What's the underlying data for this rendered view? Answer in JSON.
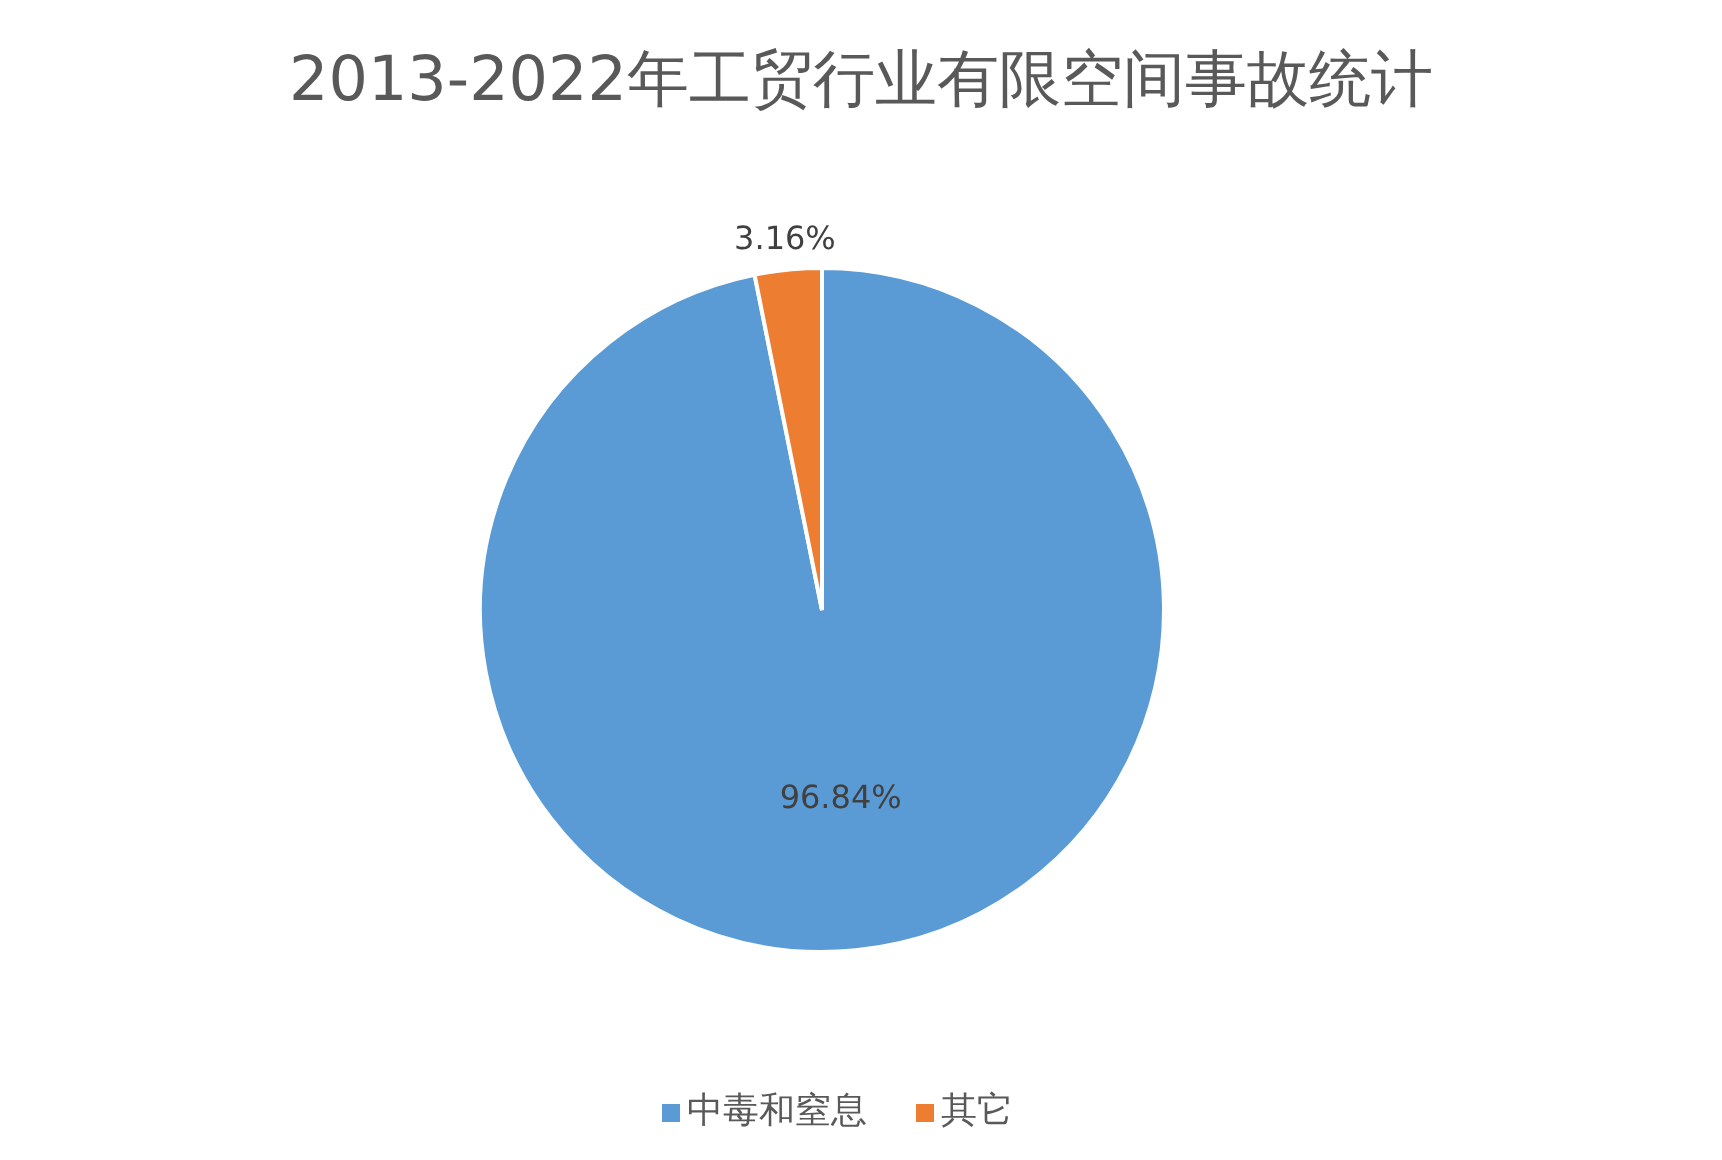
{
  "chart_data": {
    "type": "pie",
    "title": "2013-2022年工贸行业有限空间事故统计",
    "categories": [
      "中毒和窒息",
      "其它"
    ],
    "values": [
      96.84,
      3.16
    ],
    "colors": [
      "#5b9bd5",
      "#ed7d31"
    ],
    "value_labels": [
      "96.84%",
      "3.16%"
    ],
    "legend": "bottom"
  }
}
